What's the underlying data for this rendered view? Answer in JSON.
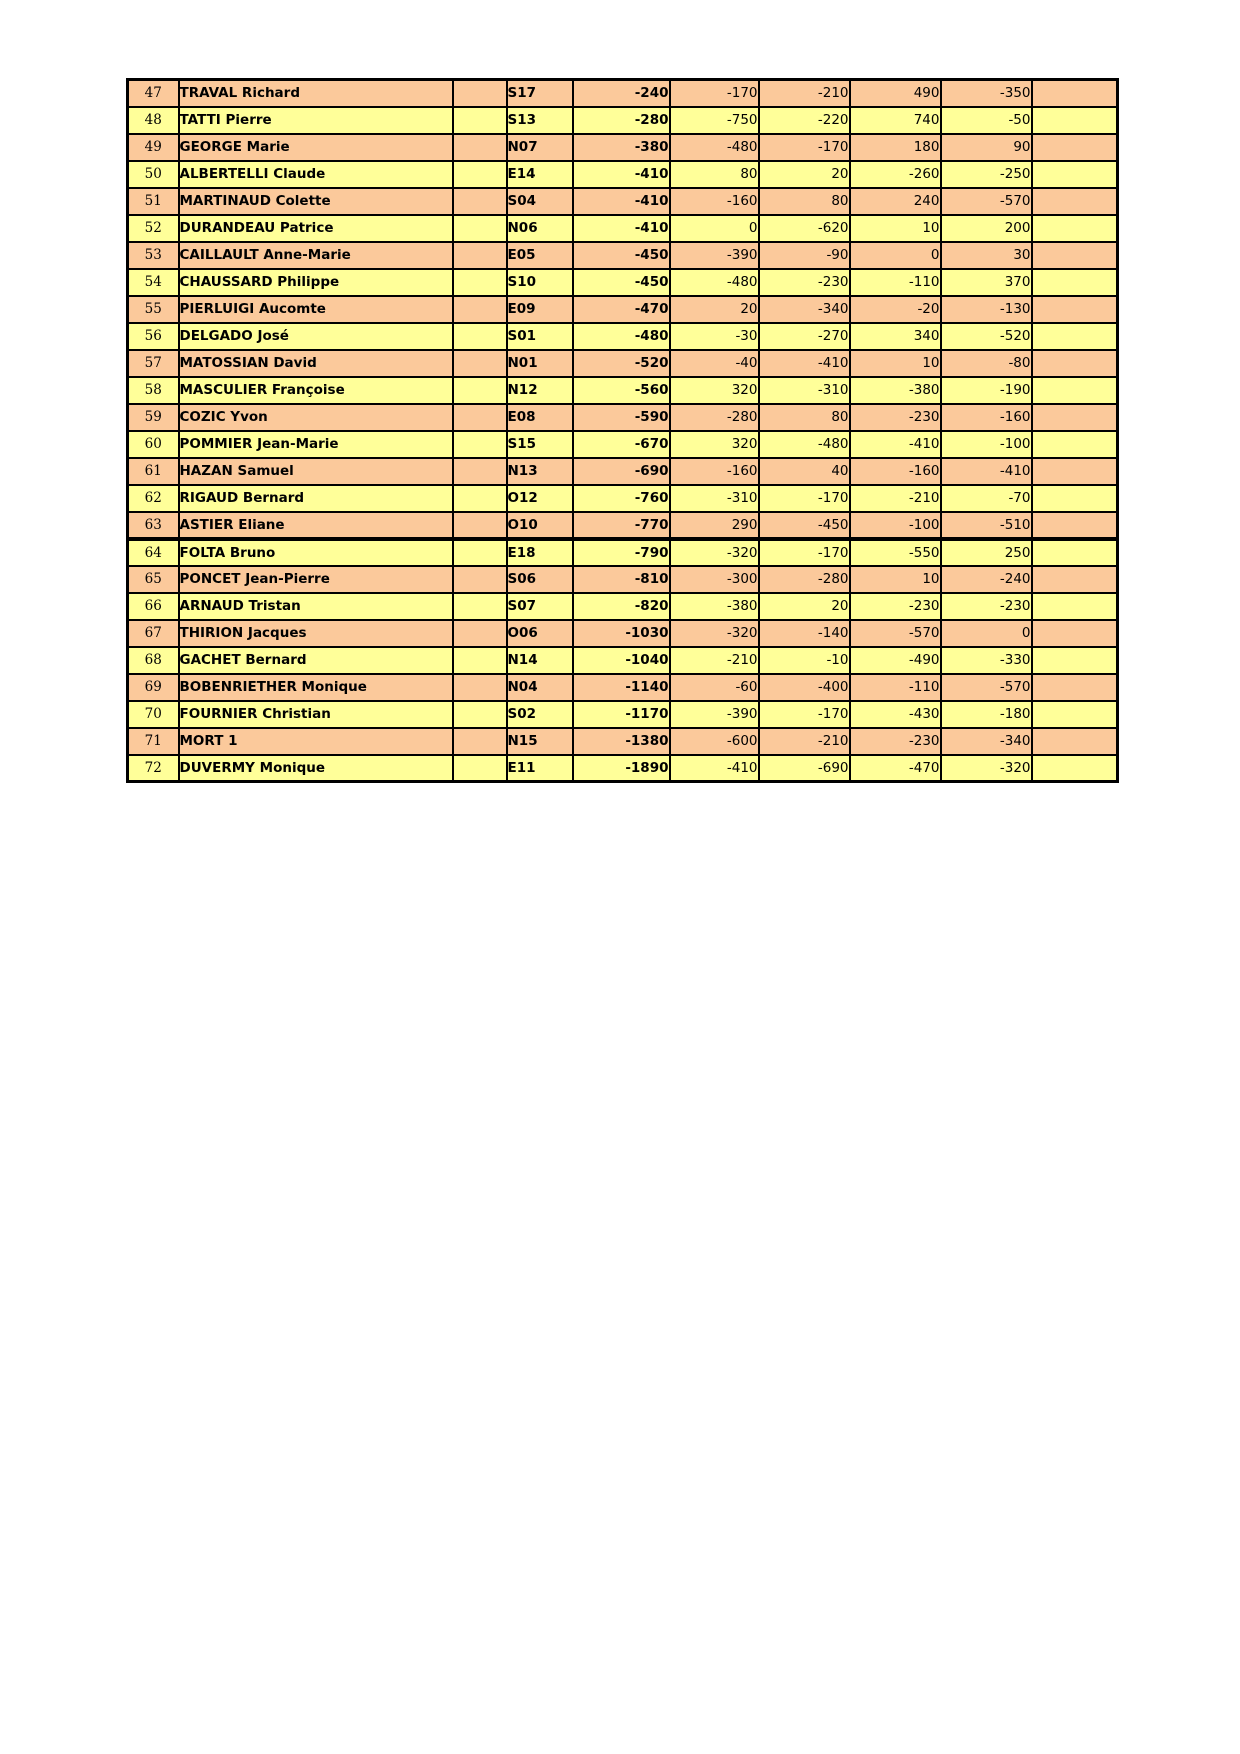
{
  "page": {
    "background": "#ffffff"
  },
  "table": {
    "description": "ranking-results-table",
    "colors": {
      "row_orange": "#FBC99B",
      "row_yellow": "#FFFF99",
      "border": "#000000",
      "text": "#000000"
    },
    "thick_divider_after_rank": 63,
    "rows": [
      {
        "rank": 47,
        "name": "TRAVAL Richard",
        "code": "S17",
        "total": "-240",
        "scores": [
          "-170",
          "-210",
          "490",
          "-350"
        ]
      },
      {
        "rank": 48,
        "name": "TATTI Pierre",
        "code": "S13",
        "total": "-280",
        "scores": [
          "-750",
          "-220",
          "740",
          "-50"
        ]
      },
      {
        "rank": 49,
        "name": "GEORGE Marie",
        "code": "N07",
        "total": "-380",
        "scores": [
          "-480",
          "-170",
          "180",
          "90"
        ]
      },
      {
        "rank": 50,
        "name": "ALBERTELLI Claude",
        "code": "E14",
        "total": "-410",
        "scores": [
          "80",
          "20",
          "-260",
          "-250"
        ]
      },
      {
        "rank": 51,
        "name": "MARTINAUD Colette",
        "code": "S04",
        "total": "-410",
        "scores": [
          "-160",
          "80",
          "240",
          "-570"
        ]
      },
      {
        "rank": 52,
        "name": "DURANDEAU Patrice",
        "code": "N06",
        "total": "-410",
        "scores": [
          "0",
          "-620",
          "10",
          "200"
        ]
      },
      {
        "rank": 53,
        "name": "CAILLAULT Anne-Marie",
        "code": "E05",
        "total": "-450",
        "scores": [
          "-390",
          "-90",
          "0",
          "30"
        ]
      },
      {
        "rank": 54,
        "name": "CHAUSSARD Philippe",
        "code": "S10",
        "total": "-450",
        "scores": [
          "-480",
          "-230",
          "-110",
          "370"
        ]
      },
      {
        "rank": 55,
        "name": "PIERLUIGI Aucomte",
        "code": "E09",
        "total": "-470",
        "scores": [
          "20",
          "-340",
          "-20",
          "-130"
        ]
      },
      {
        "rank": 56,
        "name": "DELGADO José",
        "code": "S01",
        "total": "-480",
        "scores": [
          "-30",
          "-270",
          "340",
          "-520"
        ]
      },
      {
        "rank": 57,
        "name": "MATOSSIAN David",
        "code": "N01",
        "total": "-520",
        "scores": [
          "-40",
          "-410",
          "10",
          "-80"
        ]
      },
      {
        "rank": 58,
        "name": "MASCULIER Françoise",
        "code": "N12",
        "total": "-560",
        "scores": [
          "320",
          "-310",
          "-380",
          "-190"
        ]
      },
      {
        "rank": 59,
        "name": "COZIC Yvon",
        "code": "E08",
        "total": "-590",
        "scores": [
          "-280",
          "80",
          "-230",
          "-160"
        ]
      },
      {
        "rank": 60,
        "name": "POMMIER Jean-Marie",
        "code": "S15",
        "total": "-670",
        "scores": [
          "320",
          "-480",
          "-410",
          "-100"
        ]
      },
      {
        "rank": 61,
        "name": "HAZAN Samuel",
        "code": "N13",
        "total": "-690",
        "scores": [
          "-160",
          "40",
          "-160",
          "-410"
        ]
      },
      {
        "rank": 62,
        "name": "RIGAUD Bernard",
        "code": "O12",
        "total": "-760",
        "scores": [
          "-310",
          "-170",
          "-210",
          "-70"
        ]
      },
      {
        "rank": 63,
        "name": "ASTIER Eliane",
        "code": "O10",
        "total": "-770",
        "scores": [
          "290",
          "-450",
          "-100",
          "-510"
        ]
      },
      {
        "rank": 64,
        "name": "FOLTA Bruno",
        "code": "E18",
        "total": "-790",
        "scores": [
          "-320",
          "-170",
          "-550",
          "250"
        ]
      },
      {
        "rank": 65,
        "name": "PONCET Jean-Pierre",
        "code": "S06",
        "total": "-810",
        "scores": [
          "-300",
          "-280",
          "10",
          "-240"
        ]
      },
      {
        "rank": 66,
        "name": "ARNAUD Tristan",
        "code": "S07",
        "total": "-820",
        "scores": [
          "-380",
          "20",
          "-230",
          "-230"
        ]
      },
      {
        "rank": 67,
        "name": "THIRION Jacques",
        "code": "O06",
        "total": "-1030",
        "scores": [
          "-320",
          "-140",
          "-570",
          "0"
        ]
      },
      {
        "rank": 68,
        "name": "GACHET Bernard",
        "code": "N14",
        "total": "-1040",
        "scores": [
          "-210",
          "-10",
          "-490",
          "-330"
        ]
      },
      {
        "rank": 69,
        "name": "BOBENRIETHER Monique",
        "code": "N04",
        "total": "-1140",
        "scores": [
          "-60",
          "-400",
          "-110",
          "-570"
        ]
      },
      {
        "rank": 70,
        "name": "FOURNIER Christian",
        "code": "S02",
        "total": "-1170",
        "scores": [
          "-390",
          "-170",
          "-430",
          "-180"
        ]
      },
      {
        "rank": 71,
        "name": "MORT 1",
        "code": "N15",
        "total": "-1380",
        "scores": [
          "-600",
          "-210",
          "-230",
          "-340"
        ]
      },
      {
        "rank": 72,
        "name": "DUVERMY Monique",
        "code": "E11",
        "total": "-1890",
        "scores": [
          "-410",
          "-690",
          "-470",
          "-320"
        ]
      }
    ]
  }
}
